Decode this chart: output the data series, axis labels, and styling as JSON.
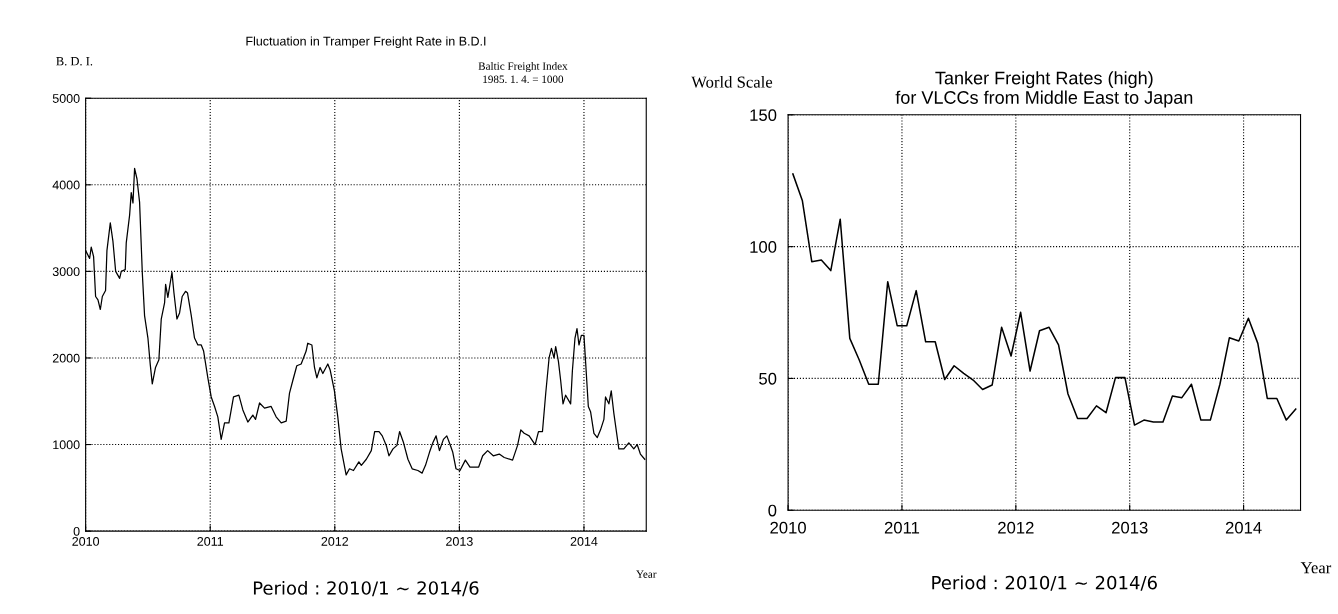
{
  "chart_data": [
    {
      "type": "line",
      "title": "Fluctuation in Tramper Freight Rate in B.D.I",
      "ylabel": "B. D. I.",
      "xlabel": "Year",
      "annotations": [
        "Baltic Freight Index\n1985. 1. 4. = 1000",
        "Period : 2010/1 ∼ 2014/6"
      ],
      "xlim": [
        2010,
        2014.5
      ],
      "xticks": [
        2010,
        2011,
        2012,
        2013,
        2014
      ],
      "ylim": [
        0,
        5000
      ],
      "yticks": [
        0,
        1000,
        2000,
        3000,
        4000,
        5000
      ],
      "grid": true,
      "legend": false,
      "series": [
        {
          "color": "#000000",
          "x": [
            2010.0,
            2010.032,
            2010.045,
            2010.064,
            2010.08,
            2010.099,
            2010.118,
            2010.134,
            2010.16,
            2010.171,
            2010.198,
            2010.219,
            2010.241,
            2010.273,
            2010.286,
            2010.318,
            2010.326,
            2010.353,
            2010.366,
            2010.38,
            2010.393,
            2010.412,
            2010.433,
            2010.455,
            2010.473,
            2010.5,
            2010.519,
            2010.535,
            2010.561,
            2010.588,
            2010.607,
            2010.634,
            2010.642,
            2010.66,
            2010.693,
            2010.709,
            2010.733,
            2010.754,
            2010.775,
            2010.802,
            2010.818,
            2010.848,
            2010.874,
            2010.901,
            2010.928,
            2010.947,
            2010.981,
            2011.008,
            2011.035,
            2011.061,
            2011.088,
            2011.115,
            2011.15,
            2011.187,
            2011.23,
            2011.262,
            2011.302,
            2011.342,
            2011.364,
            2011.396,
            2011.436,
            2011.489,
            2011.529,
            2011.57,
            2011.61,
            2011.636,
            2011.663,
            2011.695,
            2011.73,
            2011.77,
            2011.783,
            2011.816,
            2011.837,
            2011.856,
            2011.882,
            2011.904,
            2011.944,
            2011.963,
            2011.997,
            2012.024,
            2012.051,
            2012.091,
            2012.118,
            2012.15,
            2012.193,
            2012.213,
            2012.253,
            2012.293,
            2012.32,
            2012.355,
            2012.381,
            2012.413,
            2012.435,
            2012.467,
            2012.499,
            2012.52,
            2012.552,
            2012.587,
            2012.621,
            2012.667,
            2012.701,
            2012.728,
            2012.76,
            2012.787,
            2012.813,
            2012.84,
            2012.872,
            2012.899,
            2012.925,
            2012.947,
            2012.973,
            2013.005,
            2013.048,
            2013.085,
            2013.155,
            2013.187,
            2013.227,
            2013.272,
            2013.32,
            2013.36,
            2013.427,
            2013.467,
            2013.493,
            2013.52,
            2013.56,
            2013.608,
            2013.635,
            2013.667,
            2013.693,
            2013.72,
            2013.739,
            2013.76,
            2013.773,
            2013.795,
            2013.813,
            2013.832,
            2013.853,
            2013.893,
            2013.907,
            2013.928,
            2013.944,
            2013.96,
            2013.979,
            2014.0,
            2014.013,
            2014.035,
            2014.053,
            2014.08,
            2014.107,
            2014.133,
            2014.16,
            2014.173,
            2014.2,
            2014.219,
            2014.24,
            2014.28,
            2014.32,
            2014.36,
            2014.4,
            2014.427,
            2014.453,
            2014.488
          ],
          "values": [
            3240,
            3150,
            3280,
            3170,
            2710,
            2670,
            2560,
            2710,
            2780,
            3240,
            3560,
            3350,
            3000,
            2920,
            3000,
            3020,
            3330,
            3650,
            3910,
            3790,
            4190,
            4070,
            3800,
            2980,
            2490,
            2230,
            1920,
            1700,
            1890,
            1980,
            2450,
            2640,
            2850,
            2700,
            2990,
            2750,
            2450,
            2520,
            2710,
            2770,
            2750,
            2490,
            2230,
            2150,
            2150,
            2080,
            1770,
            1550,
            1440,
            1320,
            1060,
            1250,
            1250,
            1550,
            1570,
            1400,
            1260,
            1340,
            1290,
            1480,
            1420,
            1440,
            1320,
            1250,
            1270,
            1590,
            1740,
            1910,
            1930,
            2080,
            2170,
            2150,
            1890,
            1770,
            1890,
            1820,
            1930,
            1860,
            1620,
            1320,
            950,
            650,
            720,
            700,
            800,
            760,
            830,
            930,
            1150,
            1150,
            1100,
            990,
            870,
            950,
            990,
            1150,
            1020,
            830,
            720,
            700,
            670,
            760,
            910,
            1020,
            1100,
            930,
            1060,
            1100,
            1000,
            910,
            720,
            700,
            820,
            740,
            740,
            870,
            930,
            870,
            890,
            850,
            820,
            990,
            1170,
            1130,
            1100,
            1000,
            1150,
            1150,
            1590,
            2000,
            2110,
            2000,
            2130,
            1960,
            1740,
            1470,
            1570,
            1470,
            1850,
            2230,
            2340,
            2150,
            2260,
            2260,
            1960,
            1440,
            1380,
            1130,
            1080,
            1170,
            1290,
            1550,
            1470,
            1620,
            1360,
            950,
            950,
            1020,
            950,
            1000,
            890,
            830
          ]
        }
      ]
    },
    {
      "type": "line",
      "title": "Tanker Freight Rates (high)\nfor VLCCs from Middle East to Japan",
      "ylabel": "World Scale",
      "xlabel": "Year",
      "annotations": [
        "Period : 2010/1 ∼ 2014/6"
      ],
      "xlim": [
        2010,
        2014.5
      ],
      "xticks": [
        2010,
        2011,
        2012,
        2013,
        2014
      ],
      "ylim": [
        0,
        150
      ],
      "yticks": [
        0,
        50,
        100,
        150
      ],
      "grid": true,
      "legend": false,
      "series": [
        {
          "color": "#000000",
          "x": [
            2010.042,
            2010.125,
            2010.208,
            2010.292,
            2010.375,
            2010.458,
            2010.542,
            2010.625,
            2010.708,
            2010.792,
            2010.875,
            2010.958,
            2011.042,
            2011.125,
            2011.208,
            2011.292,
            2011.375,
            2011.458,
            2011.542,
            2011.625,
            2011.708,
            2011.792,
            2011.875,
            2011.958,
            2012.042,
            2012.125,
            2012.208,
            2012.292,
            2012.375,
            2012.458,
            2012.542,
            2012.625,
            2012.708,
            2012.792,
            2012.875,
            2012.958,
            2013.042,
            2013.125,
            2013.208,
            2013.292,
            2013.375,
            2013.458,
            2013.542,
            2013.625,
            2013.708,
            2013.792,
            2013.875,
            2013.958,
            2014.042,
            2014.125,
            2014.208,
            2014.292,
            2014.375,
            2014.458
          ],
          "values": [
            127.6,
            117.5,
            94.3,
            94.9,
            90.9,
            110.4,
            65.2,
            57,
            47.8,
            47.8,
            86.7,
            70,
            70,
            83.3,
            63.9,
            63.9,
            49.6,
            54.8,
            51.9,
            49.4,
            45.8,
            47.5,
            69.4,
            58.5,
            75.1,
            52.8,
            68.1,
            69.4,
            62.7,
            44.1,
            34.8,
            34.8,
            39.6,
            37,
            50.3,
            50.3,
            32.3,
            34.2,
            33.5,
            33.5,
            43.3,
            42.7,
            47.8,
            34.2,
            34.2,
            47.8,
            65.4,
            64.2,
            72.8,
            63.3,
            42.4,
            42.4,
            34.2,
            38.4
          ]
        }
      ]
    }
  ]
}
